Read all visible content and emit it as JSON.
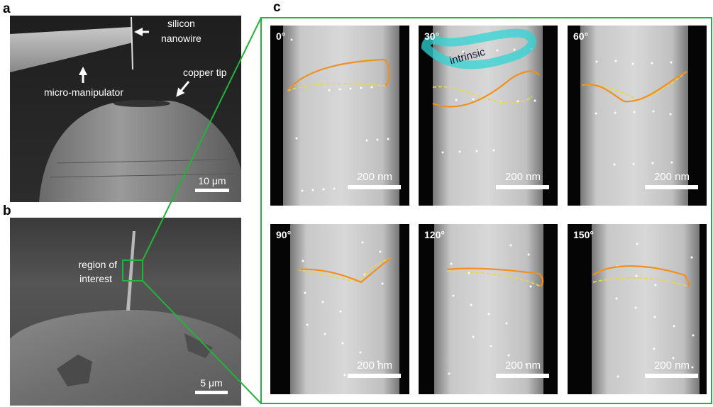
{
  "panels": {
    "a": {
      "label": "a",
      "annotations": [
        {
          "lines": [
            "silicon",
            "nanowire"
          ]
        },
        {
          "lines": [
            "micro-manipulator"
          ]
        },
        {
          "lines": [
            "copper tip"
          ]
        }
      ],
      "scale_bar": "10 μm"
    },
    "b": {
      "label": "b",
      "annotations": [
        {
          "lines": [
            "region of",
            "interest"
          ]
        }
      ],
      "scale_bar": "5 μm"
    },
    "c": {
      "label": "c",
      "annotation": "intrinsic",
      "images": [
        {
          "angle": "0°",
          "scale_bar": "200 nm"
        },
        {
          "angle": "30°",
          "scale_bar": "200 nm"
        },
        {
          "angle": "60°",
          "scale_bar": "200 nm"
        },
        {
          "angle": "90°",
          "scale_bar": "200 nm"
        },
        {
          "angle": "120°",
          "scale_bar": "200 nm"
        },
        {
          "angle": "150°",
          "scale_bar": "200 nm"
        }
      ]
    }
  }
}
